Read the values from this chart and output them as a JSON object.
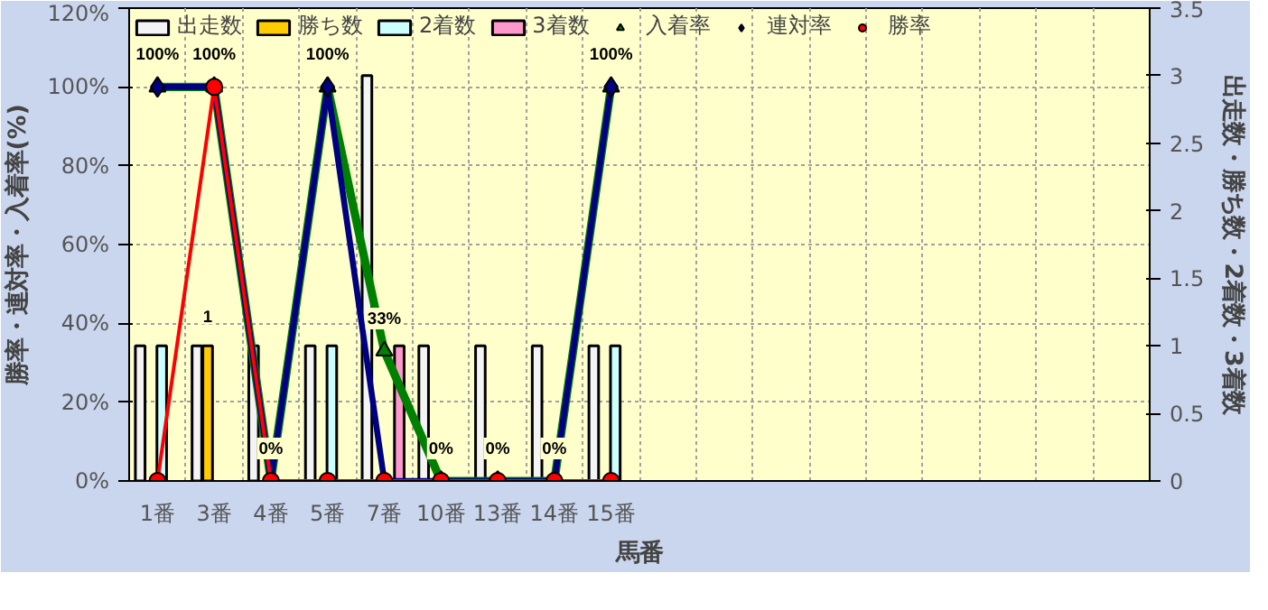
{
  "chart_data": {
    "type": "bar",
    "xlabel": "馬番",
    "ylabel": "勝率・連対率・入着率(%)",
    "y2label": "出走数・勝ち数・2着数・3着数",
    "categories": [
      "1番",
      "3番",
      "4番",
      "5番",
      "7番",
      "10番",
      "13番",
      "14番",
      "15番",
      null,
      null,
      null,
      null,
      null,
      null,
      null,
      null,
      null
    ],
    "ylim": [
      0,
      120
    ],
    "yticks": [
      {
        "value": 0,
        "label": "0%"
      },
      {
        "value": 20,
        "label": "20%"
      },
      {
        "value": 40,
        "label": "40%"
      },
      {
        "value": 60,
        "label": "60%"
      },
      {
        "value": 80,
        "label": "80%"
      },
      {
        "value": 100,
        "label": "100%"
      },
      {
        "value": 120,
        "label": "120%"
      }
    ],
    "y2lim": [
      0,
      3.5
    ],
    "y2ticks": [
      0,
      0.5,
      1,
      1.5,
      2,
      2.5,
      3,
      3.5
    ],
    "grid": true,
    "legend": "top",
    "series": [
      {
        "name": "出走数",
        "axis": "y2",
        "color": "#f4f4f4",
        "values": [
          1,
          1,
          1,
          1,
          3,
          1,
          1,
          1,
          1,
          null,
          null,
          null,
          null,
          null,
          null,
          null,
          null,
          null
        ]
      },
      {
        "name": "勝ち数",
        "axis": "y2",
        "color": "#ffcc00",
        "values": [
          null,
          1,
          null,
          null,
          null,
          null,
          null,
          null,
          null,
          null,
          null,
          null,
          null,
          null,
          null,
          null,
          null,
          null
        ],
        "value_labels": [
          null,
          "1",
          null,
          null,
          null,
          null,
          null,
          null,
          null,
          null,
          null,
          null,
          null,
          null,
          null,
          null,
          null,
          null
        ]
      },
      {
        "name": "2着数",
        "axis": "y2",
        "color": "#ccffff",
        "values": [
          1,
          null,
          null,
          1,
          null,
          null,
          null,
          null,
          1,
          null,
          null,
          null,
          null,
          null,
          null,
          null,
          null,
          null
        ]
      },
      {
        "name": "3着数",
        "axis": "y2",
        "color": "#ff99cc",
        "values": [
          null,
          null,
          null,
          null,
          1,
          null,
          null,
          null,
          null,
          null,
          null,
          null,
          null,
          null,
          null,
          null,
          null,
          null
        ]
      },
      {
        "name": "入着率",
        "type": "line",
        "color": "#008000",
        "marker": "triangle",
        "values": [
          100,
          100,
          0,
          100,
          33,
          0,
          0,
          0,
          100,
          null,
          null,
          null,
          null,
          null,
          null,
          null,
          null,
          null
        ],
        "value_labels": [
          "100%",
          "100%",
          "0%",
          "100%",
          "33%",
          "0%",
          "0%",
          "0%",
          "100%",
          null,
          null,
          null,
          null,
          null,
          null,
          null,
          null,
          null
        ]
      },
      {
        "name": "連対率",
        "type": "line",
        "color": "#000080",
        "marker": "diamond",
        "values": [
          100,
          100,
          0,
          100,
          0,
          0,
          0,
          0,
          100,
          null,
          null,
          null,
          null,
          null,
          null,
          null,
          null,
          null
        ]
      },
      {
        "name": "勝率",
        "type": "line",
        "color": "#ff0000",
        "marker": "circle",
        "values": [
          0,
          100,
          0,
          0,
          0,
          0,
          0,
          0,
          0,
          null,
          null,
          null,
          null,
          null,
          null,
          null,
          null,
          null
        ]
      }
    ]
  }
}
